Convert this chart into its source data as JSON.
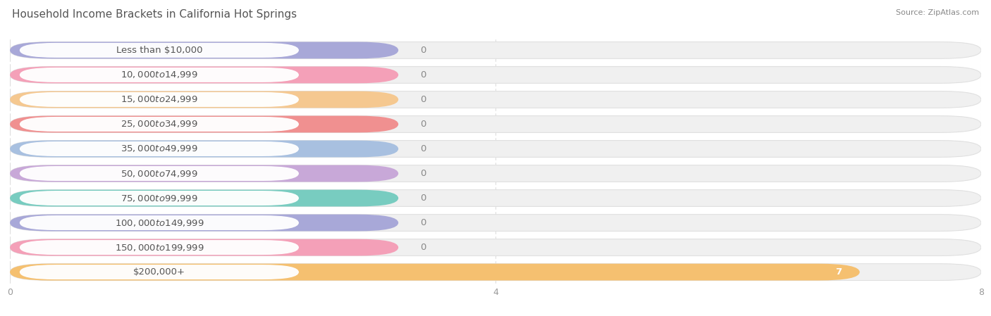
{
  "title": "Household Income Brackets in California Hot Springs",
  "source_text": "Source: ZipAtlas.com",
  "categories": [
    "Less than $10,000",
    "$10,000 to $14,999",
    "$15,000 to $24,999",
    "$25,000 to $34,999",
    "$35,000 to $49,999",
    "$50,000 to $74,999",
    "$75,000 to $99,999",
    "$100,000 to $149,999",
    "$150,000 to $199,999",
    "$200,000+"
  ],
  "values": [
    0,
    0,
    0,
    0,
    0,
    0,
    0,
    0,
    0,
    7
  ],
  "bar_colors": [
    "#a8a8d8",
    "#f4a0b8",
    "#f5c890",
    "#f09090",
    "#a8c0e0",
    "#c8a8d8",
    "#78ccc0",
    "#a8a8d8",
    "#f4a0b8",
    "#f5c070"
  ],
  "background_color": "#ffffff",
  "bar_bg_color": "#f0f0f0",
  "bar_bg_stroke": "#e0e0e0",
  "xlim": [
    0,
    8
  ],
  "xticks": [
    0,
    4,
    8
  ],
  "title_fontsize": 11,
  "label_fontsize": 9.5,
  "tick_fontsize": 9,
  "value_label_color_zero": "#888888",
  "value_label_color_nonzero": "#ffffff",
  "title_color": "#555555",
  "source_color": "#888888"
}
